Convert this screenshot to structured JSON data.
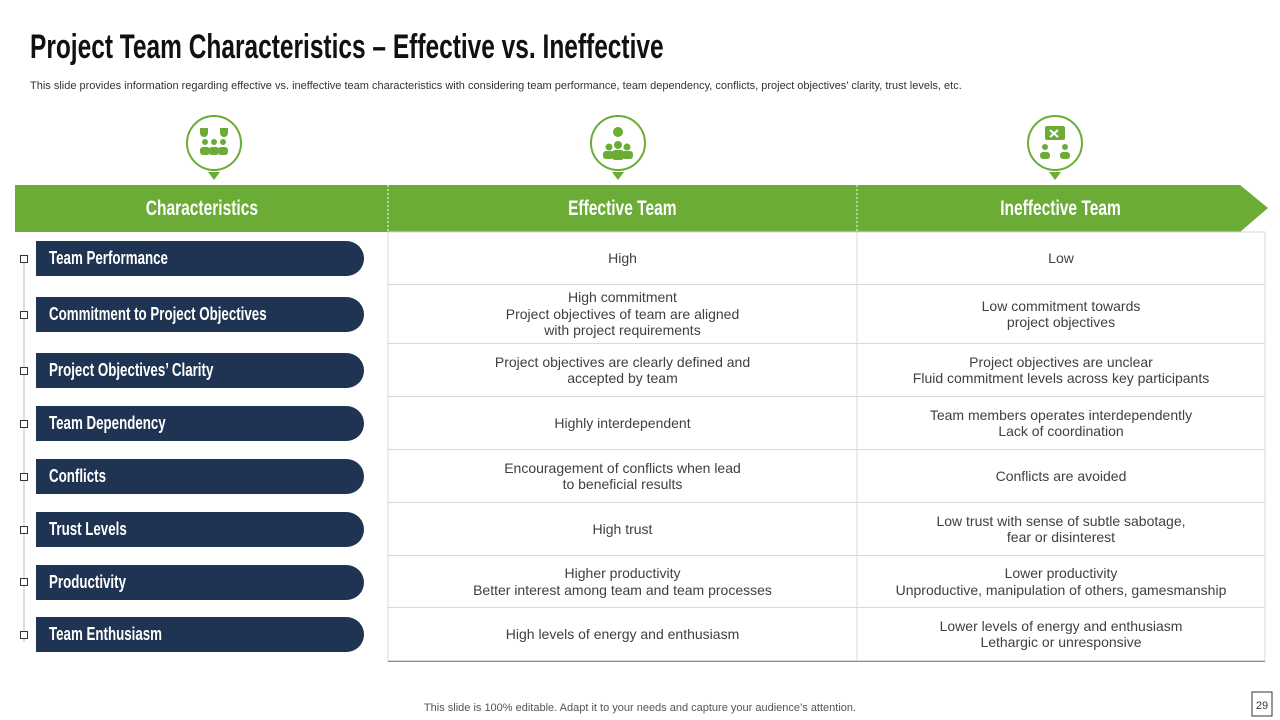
{
  "header": {
    "title": "Project Team Characteristics – Effective vs. Ineffective",
    "subtitle": "This slide provides information regarding effective vs.  ineffective team characteristics with considering team performance, team dependency, conflicts, project objectives’ clarity, trust levels, etc."
  },
  "table": {
    "headers": [
      "Characteristics",
      "Effective Team",
      "Ineffective Team"
    ],
    "rows": [
      {
        "label": "Team Performance",
        "effective": [
          "High"
        ],
        "ineffective": [
          "Low"
        ]
      },
      {
        "label": "Commitment to Project Objectives",
        "effective": [
          "High commitment",
          "Project objectives of team are aligned",
          "with project requirements"
        ],
        "ineffective": [
          "Low commitment towards",
          "project objectives"
        ]
      },
      {
        "label": "Project Objectives’ Clarity",
        "effective": [
          "Project objectives are clearly defined and",
          "accepted by team"
        ],
        "ineffective": [
          "Project objectives are unclear",
          "Fluid commitment levels across key participants"
        ]
      },
      {
        "label": "Team Dependency",
        "effective": [
          "Highly interdependent"
        ],
        "ineffective": [
          "Team members operates interdependently",
          "Lack of coordination"
        ]
      },
      {
        "label": "Conflicts",
        "effective": [
          "Encouragement of conflicts when lead",
          "to beneficial results"
        ],
        "ineffective": [
          "Conflicts are avoided"
        ]
      },
      {
        "label": "Trust Levels",
        "effective": [
          "High trust"
        ],
        "ineffective": [
          "Low trust with sense of subtle sabotage,",
          "fear or disinterest"
        ]
      },
      {
        "label": "Productivity",
        "effective": [
          "Higher productivity",
          "Better interest among team and team processes"
        ],
        "ineffective": [
          "Lower productivity",
          "Unproductive, manipulation of others, gamesmanship"
        ]
      },
      {
        "label": "Team Enthusiasm",
        "effective": [
          "High levels of energy and enthusiasm"
        ],
        "ineffective": [
          "Lower levels of energy and enthusiasm",
          "Lethargic or unresponsive"
        ]
      }
    ]
  },
  "footer": {
    "note": "This slide is 100% editable. Adapt it to your needs and capture your audience’s attention.",
    "page": 29
  }
}
